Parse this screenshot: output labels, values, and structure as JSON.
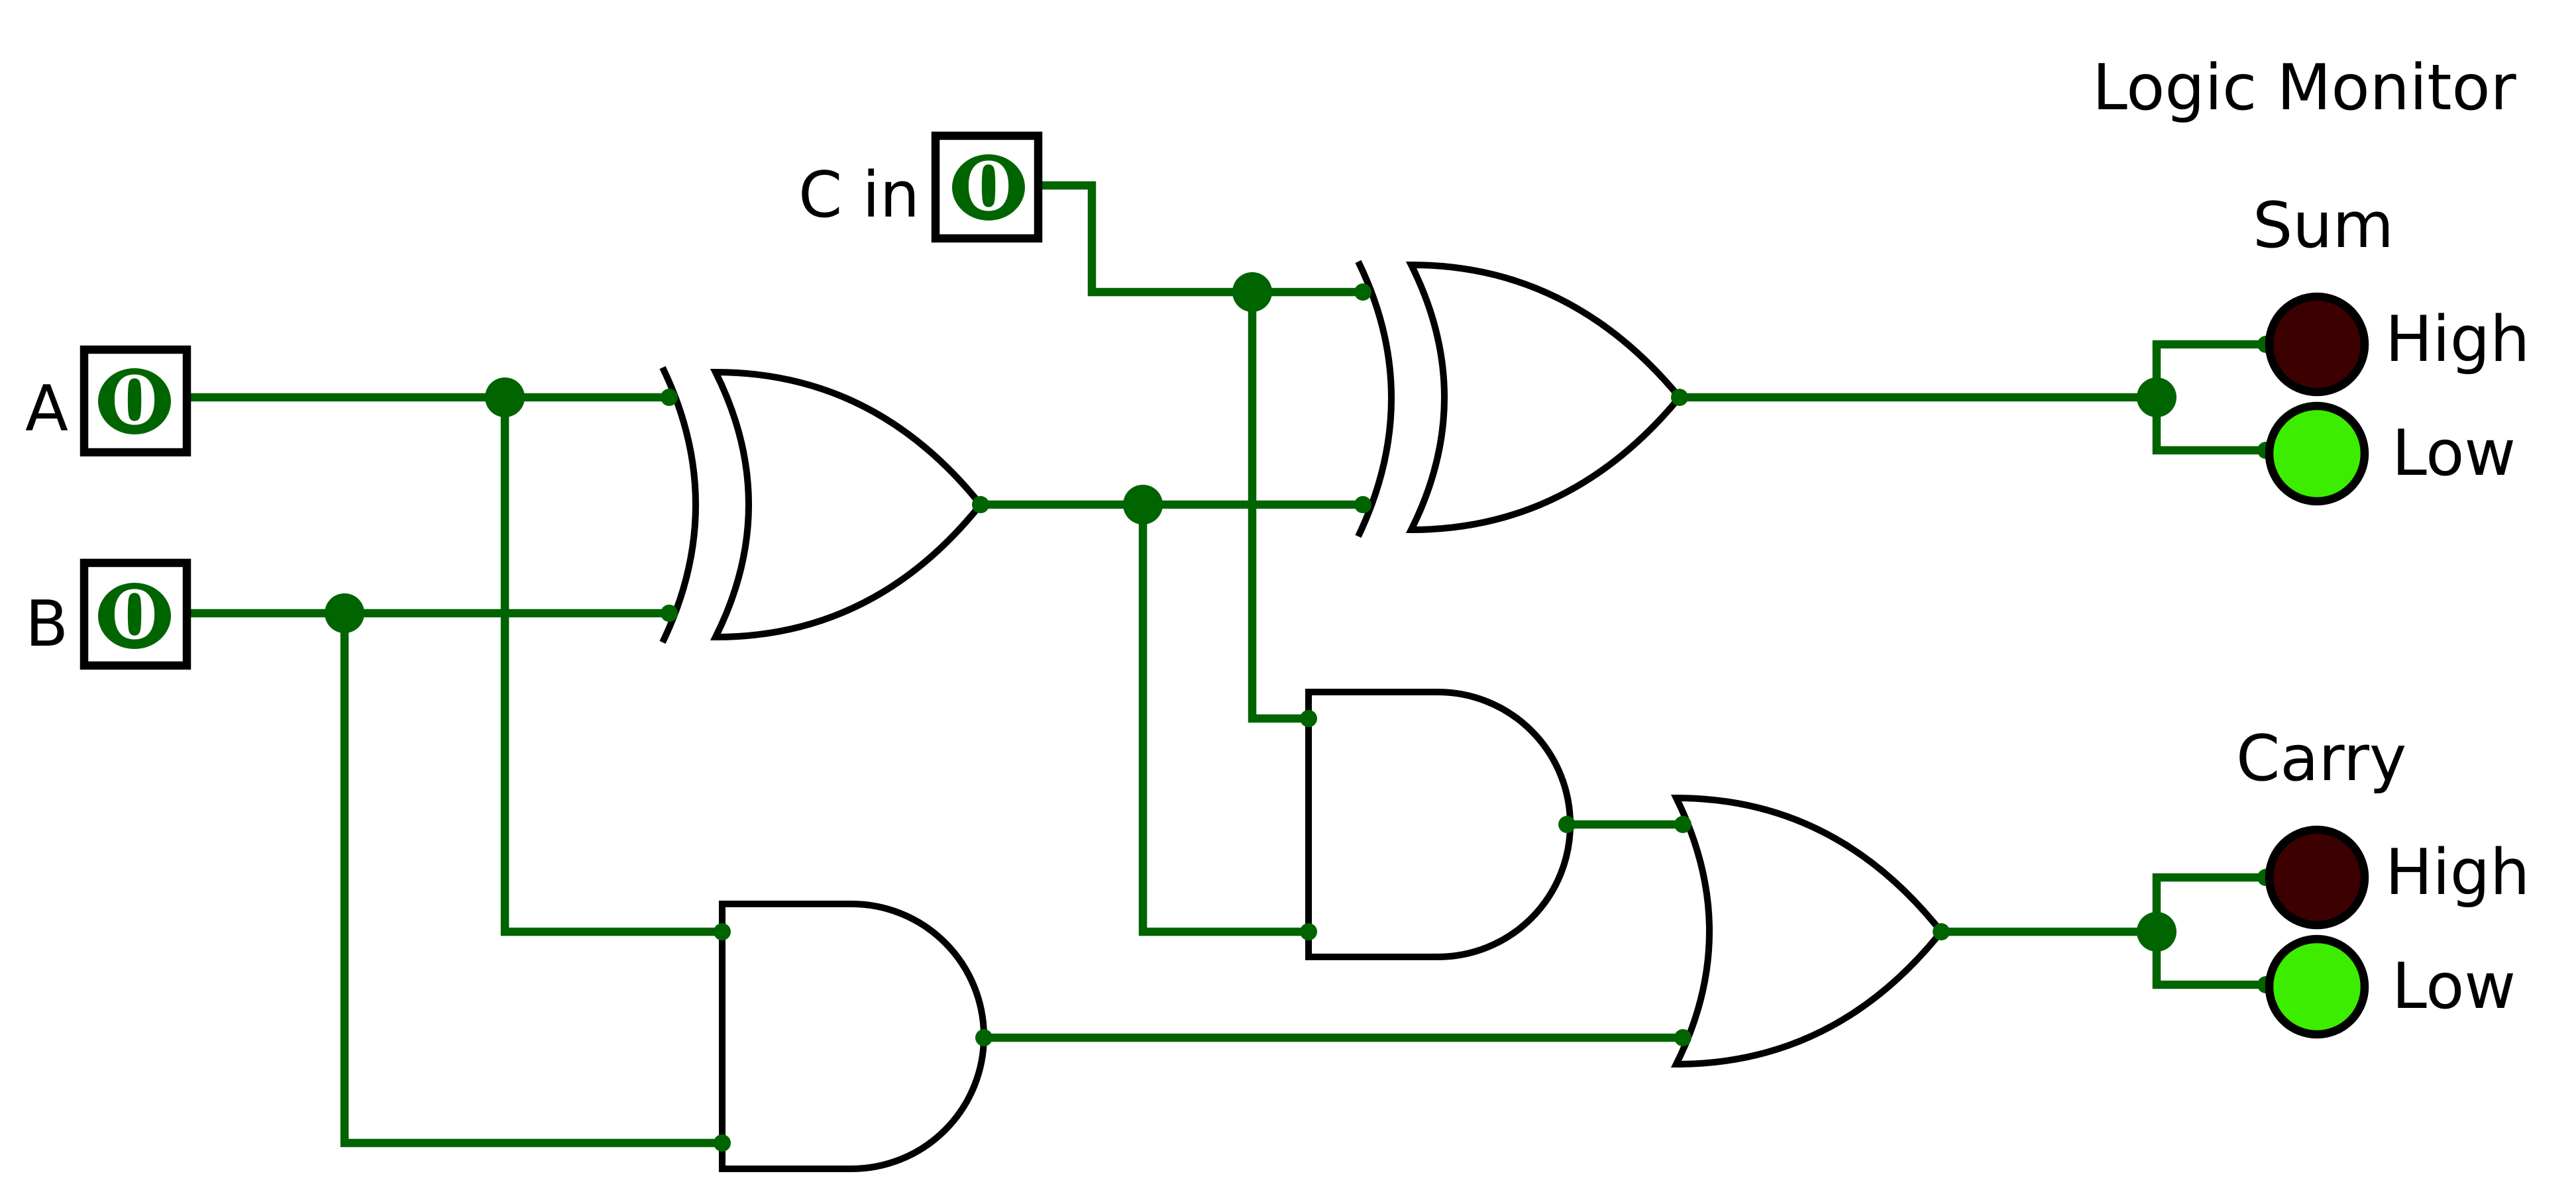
{
  "monitor": {
    "title": "Logic Monitor",
    "sum_label": "Sum",
    "carry_label": "Carry",
    "high_label": "High",
    "low_label": "Low"
  },
  "inputs": {
    "a": {
      "label": "A",
      "value": "0"
    },
    "b": {
      "label": "B",
      "value": "0"
    },
    "cin": {
      "label": "C in",
      "value": "0"
    }
  },
  "outputs": {
    "sum": {
      "high": false,
      "low": true
    },
    "carry": {
      "high": false,
      "low": true
    }
  },
  "colors": {
    "wire": "#006400",
    "lamp_off_high": "#3d0000",
    "lamp_on_low": "#3ded00"
  }
}
